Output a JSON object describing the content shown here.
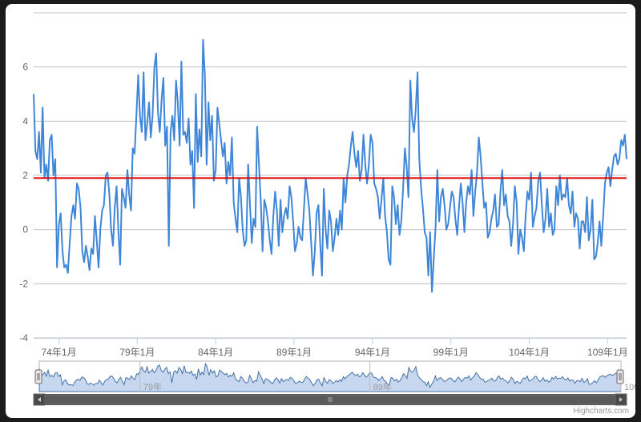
{
  "chart_data": {
    "type": "line",
    "x_ticks": [
      "74年1月",
      "79年1月",
      "84年1月",
      "89年1月",
      "94年1月",
      "99年1月",
      "104年1月",
      "109年1月"
    ],
    "y_ticks": [
      "6",
      "4",
      "2",
      "0",
      "-2",
      "-4"
    ],
    "ylim": [
      -4,
      8
    ],
    "grid": true,
    "reference_line": {
      "value": 1.9,
      "color": "#dd0000"
    },
    "series": [
      {
        "color": "#3f86d8",
        "values": [
          5.0,
          2.9,
          2.6,
          3.6,
          2.1,
          4.5,
          1.9,
          2.4,
          1.8,
          3.3,
          3.5,
          2.0,
          2.6,
          -1.4,
          0.2,
          0.6,
          -0.8,
          -1.4,
          -1.3,
          -1.6,
          -0.5,
          0.5,
          0.9,
          0.4,
          1.7,
          1.5,
          0.8,
          -0.8,
          -1.2,
          -0.6,
          -1.0,
          -1.5,
          -0.7,
          -0.9,
          0.5,
          -0.4,
          -1.4,
          0.0,
          0.7,
          0.9,
          2.0,
          2.1,
          1.3,
          0.0,
          -0.6,
          0.8,
          1.6,
          0.0,
          -1.3,
          1.5,
          1.2,
          0.8,
          2.2,
          1.3,
          0.7,
          3.0,
          2.8,
          4.2,
          5.7,
          4.2,
          3.6,
          5.8,
          3.3,
          3.9,
          4.7,
          3.4,
          4.2,
          6.0,
          6.5,
          4.3,
          3.6,
          4.8,
          5.6,
          3.1,
          3.8,
          -0.6,
          3.6,
          4.2,
          3.3,
          5.5,
          4.7,
          3.1,
          6.2,
          3.5,
          3.6,
          3.2,
          4.1,
          2.4,
          2.9,
          0.8,
          5.0,
          2.5,
          3.7,
          2.7,
          7.0,
          5.7,
          2.4,
          4.7,
          3.3,
          4.2,
          1.8,
          2.2,
          4.5,
          3.9,
          3.3,
          2.7,
          3.2,
          1.7,
          2.5,
          2.0,
          3.4,
          1.0,
          0.4,
          -0.1,
          1.9,
          1.2,
          0.0,
          -0.6,
          -0.4,
          2.4,
          1.0,
          -0.5,
          0.4,
          0.1,
          3.8,
          2.4,
          1.1,
          -0.8,
          1.1,
          0.8,
          0.3,
          -0.4,
          -0.9,
          0.5,
          1.4,
          0.7,
          -0.6,
          1.1,
          -0.1,
          0.5,
          0.8,
          0.4,
          1.6,
          1.2,
          0.3,
          -0.8,
          -0.5,
          0.1,
          -0.3,
          -0.4,
          0.8,
          1.9,
          1.3,
          0.7,
          -0.5,
          -1.7,
          -0.8,
          0.6,
          0.9,
          -0.5,
          -1.7,
          1.5,
          0.0,
          -0.7,
          0.7,
          0.3,
          -0.8,
          -0.3,
          0.4,
          -0.2,
          0.7,
          0.0,
          1.9,
          1.0,
          2.0,
          2.4,
          3.1,
          3.6,
          2.8,
          2.3,
          2.9,
          1.8,
          2.2,
          3.5,
          2.4,
          1.7,
          2.4,
          3.5,
          3.2,
          1.7,
          1.5,
          1.2,
          0.4,
          1.1,
          1.9,
          0.5,
          -0.1,
          -1.1,
          -1.3,
          1.6,
          1.2,
          0.2,
          0.9,
          -0.2,
          0.3,
          1.5,
          3.0,
          2.3,
          1.2,
          5.5,
          4.1,
          3.6,
          4.4,
          5.8,
          2.6,
          1.5,
          0.8,
          -0.1,
          -0.3,
          -1.7,
          -0.1,
          -2.3,
          -1.1,
          0.1,
          2.2,
          0.3,
          1.2,
          1.5,
          0.9,
          0.0,
          0.2,
          0.8,
          1.4,
          1.2,
          0.4,
          -0.2,
          0.8,
          1.7,
          1.0,
          -0.1,
          1.0,
          1.6,
          1.3,
          2.2,
          0.5,
          1.4,
          2.1,
          3.4,
          2.7,
          1.7,
          0.8,
          1.0,
          -0.3,
          -0.1,
          0.4,
          0.7,
          1.3,
          0.1,
          0.2,
          1.4,
          2.2,
          0.9,
          1.3,
          0.5,
          0.3,
          -0.6,
          0.2,
          1.6,
          1.0,
          -0.9,
          0.0,
          -0.3,
          -0.8,
          0.5,
          1.4,
          1.1,
          2.1,
          0.1,
          0.5,
          0.8,
          1.8,
          2.1,
          0.9,
          -0.1,
          0.4,
          1.5,
          0.1,
          0.6,
          -0.2,
          0.0,
          1.6,
          0.9,
          2.0,
          1.1,
          1.3,
          1.2,
          1.9,
          0.9,
          0.6,
          1.4,
          0.1,
          0.6,
          0.4,
          -0.7,
          0.3,
          0.3,
          -0.1,
          1.2,
          -0.4,
          0.0,
          1.1,
          -1.1,
          -1.0,
          -0.5,
          0.3,
          -0.6,
          0.5,
          1.7,
          2.1,
          2.3,
          1.6,
          2.2,
          2.7,
          2.8,
          2.4,
          2.6,
          3.3,
          3.1,
          3.5,
          2.6
        ]
      }
    ]
  },
  "navigator": {
    "ticks": [
      "79年",
      "89年",
      "109年"
    ]
  },
  "colors": {
    "series": "#3f86d8",
    "reference": "#dd0000",
    "navigator_fill": "#c6d7ef",
    "navigator_line": "#4572a7"
  },
  "credits": "Highcharts.com"
}
